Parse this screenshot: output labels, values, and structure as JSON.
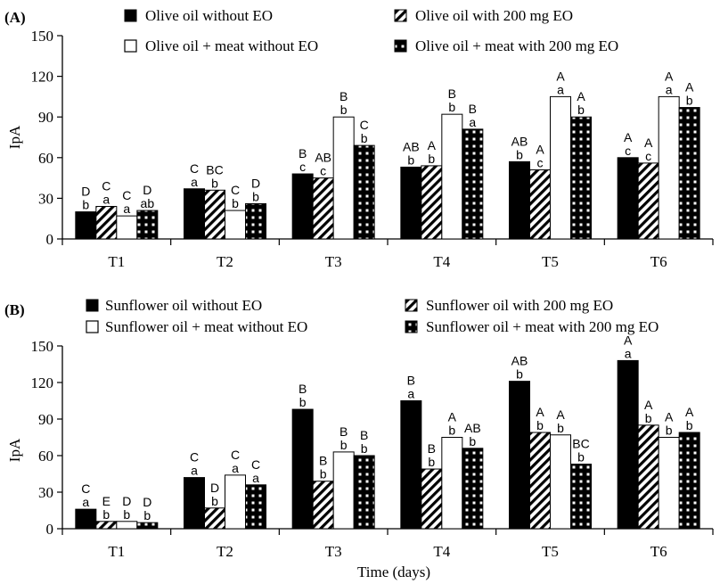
{
  "chart_data": [
    {
      "panel_label": "(A)",
      "type": "bar",
      "categories": [
        "T1",
        "T2",
        "T3",
        "T4",
        "T5",
        "T6"
      ],
      "series": [
        {
          "name": "Olive oil without EO",
          "pattern": "solid",
          "values": [
            20,
            37,
            48,
            53,
            57,
            60
          ],
          "upper_letters": [
            "D",
            "C",
            "B",
            "AB",
            "AB",
            "A"
          ],
          "lower_letters": [
            "b",
            "a",
            "c",
            "b",
            "b",
            "c"
          ]
        },
        {
          "name": "Olive oil with 200 mg EO",
          "pattern": "hatch",
          "values": [
            24,
            36,
            45,
            54,
            51,
            56
          ],
          "upper_letters": [
            "C",
            "BC",
            "AB",
            "A",
            "A",
            "A"
          ],
          "lower_letters": [
            "a",
            "b",
            "c",
            "b",
            "c",
            "c"
          ]
        },
        {
          "name": "Olive oil + meat without EO",
          "pattern": "empty",
          "values": [
            17,
            21,
            90,
            92,
            105,
            105
          ],
          "upper_letters": [
            "C",
            "C",
            "B",
            "B",
            "A",
            "A"
          ],
          "lower_letters": [
            "a",
            "b",
            "b",
            "b",
            "a",
            "a"
          ]
        },
        {
          "name": "Olive oil + meat with 200 mg EO",
          "pattern": "checker",
          "values": [
            21,
            26,
            69,
            81,
            90,
            97
          ],
          "upper_letters": [
            "D",
            "D",
            "C",
            "B",
            "A",
            "A"
          ],
          "lower_letters": [
            "ab",
            "b",
            "b",
            "a",
            "b",
            "b"
          ]
        }
      ],
      "xlabel": "",
      "ylabel": "IpA",
      "ylim": [
        0,
        150
      ],
      "yticks": [
        0,
        30,
        60,
        90,
        120,
        150
      ],
      "grid": false,
      "legend_placement": "top"
    },
    {
      "panel_label": "(B)",
      "type": "bar",
      "categories": [
        "T1",
        "T2",
        "T3",
        "T4",
        "T5",
        "T6"
      ],
      "series": [
        {
          "name": "Sunflower oil without EO",
          "pattern": "solid",
          "values": [
            16,
            42,
            98,
            105,
            121,
            138
          ],
          "upper_letters": [
            "C",
            "C",
            "B",
            "B",
            "AB",
            "A"
          ],
          "lower_letters": [
            "a",
            "a",
            "b",
            "a",
            "b",
            "a"
          ]
        },
        {
          "name": "Sunflower oil with 200 mg EO",
          "pattern": "hatch",
          "values": [
            6,
            17,
            39,
            49,
            79,
            85
          ],
          "upper_letters": [
            "E",
            "D",
            "B",
            "B",
            "A",
            "A"
          ],
          "lower_letters": [
            "b",
            "b",
            "b",
            "b",
            "b",
            "b"
          ]
        },
        {
          "name": "Sunflower oil + meat without EO",
          "pattern": "empty",
          "values": [
            6,
            44,
            63,
            75,
            77,
            75
          ],
          "upper_letters": [
            "D",
            "C",
            "B",
            "A",
            "A",
            "A"
          ],
          "lower_letters": [
            "b",
            "a",
            "b",
            "b",
            "b",
            "b"
          ]
        },
        {
          "name": "Sunflower oil + meat with 200 mg EO",
          "pattern": "checker",
          "values": [
            5,
            36,
            60,
            66,
            53,
            79
          ],
          "upper_letters": [
            "D",
            "C",
            "B",
            "AB",
            "BC",
            "A"
          ],
          "lower_letters": [
            "b",
            "a",
            "b",
            "b",
            "b",
            "b"
          ]
        }
      ],
      "xlabel": "Time (days)",
      "ylabel": "IpA",
      "ylim": [
        0,
        150
      ],
      "yticks": [
        0,
        30,
        60,
        90,
        120,
        150
      ],
      "grid": false,
      "legend_placement": "top"
    }
  ]
}
